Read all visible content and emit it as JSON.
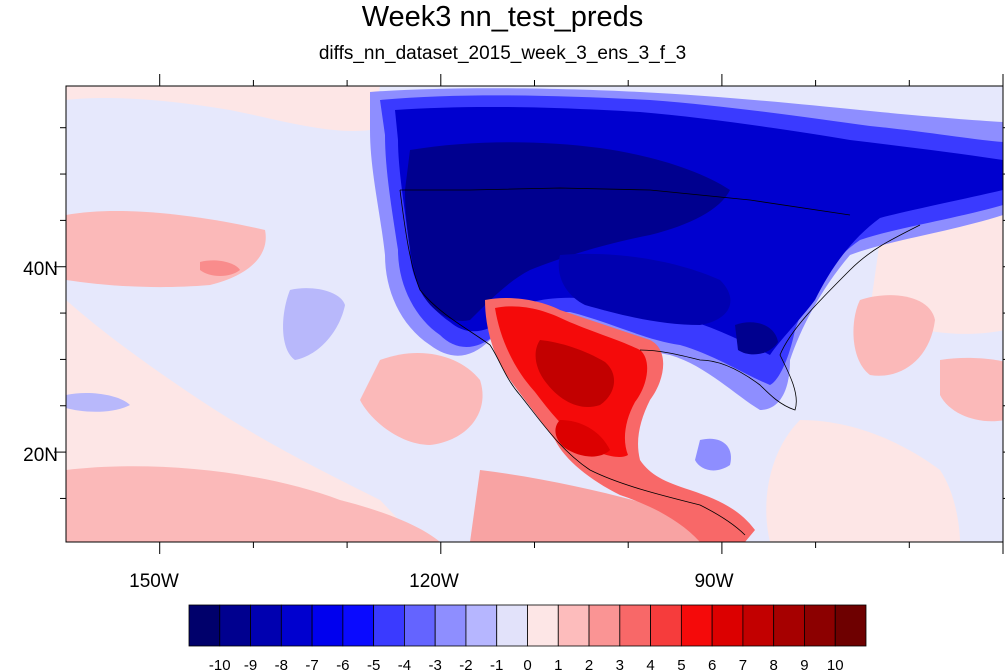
{
  "title": "Week3 nn_test_preds",
  "subtitle": "diffs_nn_dataset_2015_week_3_ens_3_f_3",
  "x_axis": {
    "tick_labels": [
      "150W",
      "120W",
      "90W"
    ]
  },
  "y_axis": {
    "tick_labels": [
      "40N",
      "20N"
    ]
  },
  "colorbar": {
    "labels": [
      "-10",
      "-9",
      "-8",
      "-7",
      "-6",
      "-5",
      "-4",
      "-3",
      "-2",
      "-1",
      "0",
      "1",
      "2",
      "3",
      "4",
      "5",
      "6",
      "7",
      "8",
      "9",
      "10"
    ],
    "colors": [
      "#00006b",
      "#00008f",
      "#0000b0",
      "#0000cf",
      "#0000ee",
      "#0a0aff",
      "#3a3aff",
      "#6464ff",
      "#8e8eff",
      "#b6b6ff",
      "#e2e2fa",
      "#fde6e6",
      "#fdbcbc",
      "#fa9494",
      "#f86868",
      "#f63c3c",
      "#f50a0a",
      "#dc0000",
      "#c20000",
      "#a60000",
      "#8c0000",
      "#6e0000"
    ]
  },
  "map": {
    "ocean_base_color": "#e6e8fc",
    "features": [
      {
        "name": "warm-anomaly-mexico",
        "color": "#dc0000"
      },
      {
        "name": "cold-anomaly-north-america",
        "color": "#0000b0"
      }
    ]
  }
}
